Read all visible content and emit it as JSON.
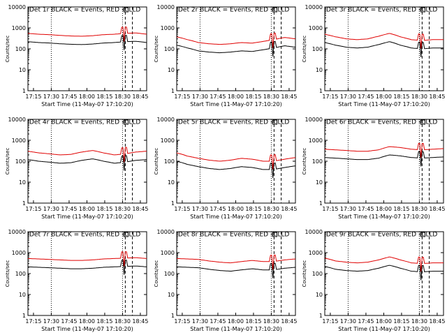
{
  "chart_data": [
    {
      "type": "line",
      "title": "Det 1r BLACK = Events, RED = LLD",
      "peak": "lo",
      "events": [
        220,
        200,
        190,
        175,
        165,
        160,
        170,
        190,
        200,
        220,
        230,
        200
      ]
    },
    {
      "type": "line",
      "title": "Det 2r BLACK = Events, RED = LLD",
      "peak": "lo",
      "events": [
        150,
        110,
        80,
        70,
        65,
        70,
        80,
        75,
        90,
        110,
        140,
        120
      ]
    },
    {
      "type": "line",
      "title": "Det 3r BLACK = Events, RED = LLD",
      "peak": "lo",
      "events": [
        200,
        150,
        120,
        110,
        120,
        160,
        220,
        150,
        110,
        100,
        110,
        110
      ]
    },
    {
      "type": "line",
      "title": "Det 4r BLACK = Events, RED = LLD",
      "peak": "lo",
      "events": [
        120,
        100,
        90,
        80,
        85,
        110,
        130,
        100,
        80,
        90,
        110,
        120
      ]
    },
    {
      "type": "line",
      "title": "Det 5r BLACK = Events, RED = LLD",
      "peak": "lo",
      "events": [
        100,
        70,
        55,
        45,
        40,
        45,
        55,
        50,
        40,
        40,
        50,
        60
      ]
    },
    {
      "type": "line",
      "title": "Det 6r BLACK = Events, RED = LLD",
      "peak": "lo",
      "events": [
        150,
        140,
        130,
        120,
        120,
        140,
        200,
        180,
        150,
        140,
        150,
        160
      ]
    },
    {
      "type": "line",
      "title": "Det 7r BLACK = Events, RED = LLD",
      "peak": "lo",
      "events": [
        210,
        200,
        190,
        180,
        170,
        170,
        180,
        200,
        210,
        220,
        230,
        210
      ]
    },
    {
      "type": "line",
      "title": "Det 8r BLACK = Events, RED = LLD",
      "peak": "lo",
      "events": [
        210,
        200,
        190,
        160,
        140,
        130,
        150,
        170,
        150,
        150,
        180,
        200
      ]
    },
    {
      "type": "line",
      "title": "Det 9r BLACK = Events, RED = LLD",
      "peak": "lo",
      "events": [
        220,
        160,
        140,
        130,
        140,
        180,
        250,
        180,
        130,
        120,
        130,
        130
      ]
    }
  ],
  "shared": {
    "ylabel": "Counts/sec",
    "xlabel": "Start Time (11-May-07 17:10:20)",
    "yticks": [
      "1",
      "10",
      "100",
      "1000",
      "10000"
    ],
    "xticks": [
      "17:15",
      "17:30",
      "17:45",
      "18:00",
      "18:15",
      "18:30",
      "18:45"
    ],
    "ylim": [
      1,
      10000
    ],
    "xlim_minutes": [
      0,
      40
    ],
    "lld_factor": 2.5,
    "series_colors": {
      "events": "#000000",
      "lld": "#e00000"
    },
    "marker_label": "L"
  }
}
